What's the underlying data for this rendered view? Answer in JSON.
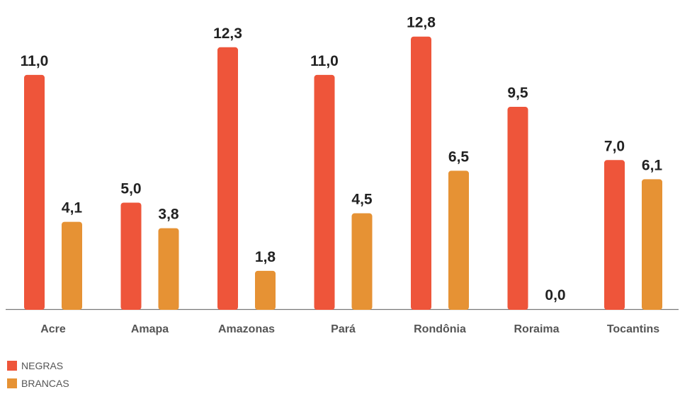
{
  "chart_data": {
    "type": "bar",
    "categories": [
      "Acre",
      "Amapa",
      "Amazonas",
      "Pará",
      "Rondônia",
      "Roraima",
      "Tocantins"
    ],
    "series": [
      {
        "name": "NEGRAS",
        "color": "#ee553a",
        "values": [
          11.0,
          5.0,
          12.3,
          11.0,
          12.8,
          9.5,
          7.0
        ],
        "labels": [
          "11,0",
          "5,0",
          "12,3",
          "11,0",
          "12,8",
          "9,5",
          "7,0"
        ]
      },
      {
        "name": "BRANCAS",
        "color": "#e69234",
        "values": [
          4.1,
          3.8,
          1.8,
          4.5,
          6.5,
          0.0,
          6.1
        ],
        "labels": [
          "4,1",
          "3,8",
          "1,8",
          "4,5",
          "6,5",
          "0,0",
          "6,1"
        ]
      }
    ],
    "ylim": [
      0,
      14
    ],
    "grid": false,
    "legend_position": "bottom-left"
  }
}
